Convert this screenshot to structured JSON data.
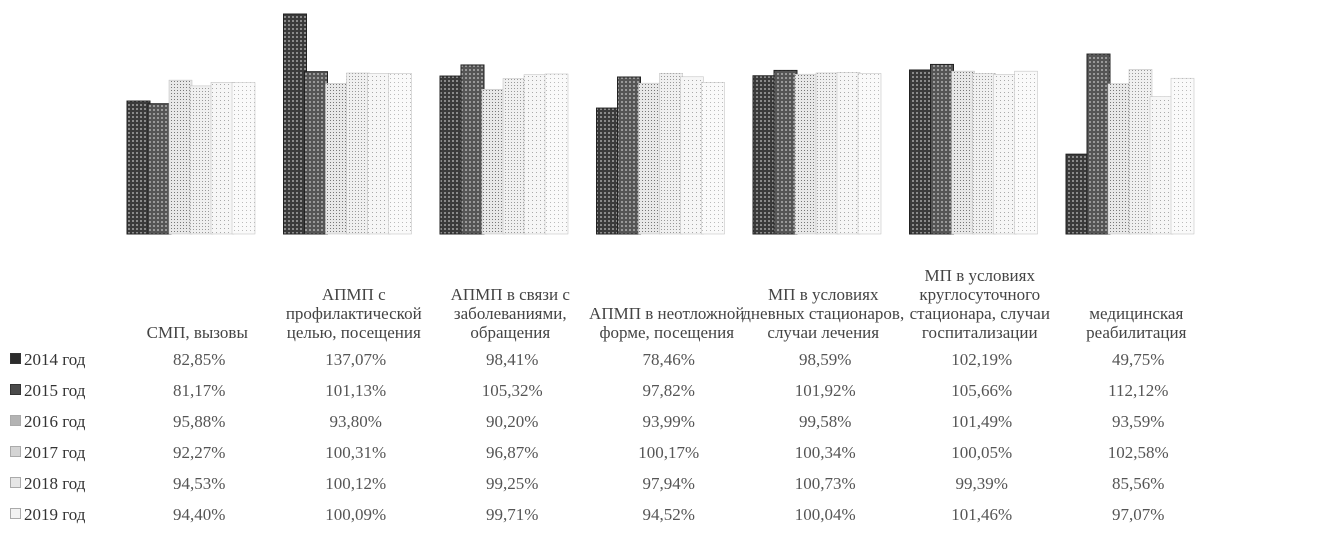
{
  "chart_data": {
    "type": "bar",
    "categories": [
      "СМП, вызовы",
      "АПМП с профилактической целью, посещения",
      "АПМП в связи с заболеваниями, обращения",
      "АПМП в неотложной форме, посещения",
      "МП в условиях дневных стационаров, случаи лечения",
      "МП в условиях круглосуточного стационара, случаи госпитализации",
      "медицинская реабилитация"
    ],
    "series": [
      {
        "name": "2014 год",
        "color": "#2b2b2b",
        "values": [
          82.85,
          137.07,
          98.41,
          78.46,
          98.59,
          102.19,
          49.75
        ],
        "labels": [
          "82,85%",
          "137,07%",
          "98,41%",
          "78,46%",
          "98,59%",
          "102,19%",
          "49,75%"
        ]
      },
      {
        "name": "2015 год",
        "color": "#4a4a4a",
        "values": [
          81.17,
          101.13,
          105.32,
          97.82,
          101.92,
          105.66,
          112.12
        ],
        "labels": [
          "81,17%",
          "101,13%",
          "105,32%",
          "97,82%",
          "101,92%",
          "105,66%",
          "112,12%"
        ]
      },
      {
        "name": "2016 год",
        "color": "#b3b3b3",
        "values": [
          95.88,
          93.8,
          90.2,
          93.99,
          99.58,
          101.49,
          93.59
        ],
        "labels": [
          "95,88%",
          "93,80%",
          "90,20%",
          "93,99%",
          "99,58%",
          "101,49%",
          "93,59%"
        ]
      },
      {
        "name": "2017 год",
        "color": "#d4d4d4",
        "values": [
          92.27,
          100.31,
          96.87,
          100.17,
          100.34,
          100.05,
          102.58
        ],
        "labels": [
          "92,27%",
          "100,31%",
          "96,87%",
          "100,17%",
          "100,34%",
          "100,05%",
          "102,58%"
        ]
      },
      {
        "name": "2018 год",
        "color": "#e6e6e6",
        "values": [
          94.53,
          100.12,
          99.25,
          97.94,
          100.73,
          99.39,
          85.56
        ],
        "labels": [
          "94,53%",
          "100,12%",
          "99,25%",
          "97,94%",
          "100,73%",
          "99,39%",
          "85,56%"
        ]
      },
      {
        "name": "2019 год",
        "color": "#f2f2f2",
        "values": [
          94.4,
          100.09,
          99.71,
          94.52,
          100.04,
          101.46,
          97.07
        ],
        "labels": [
          "94,40%",
          "100,09%",
          "99,71%",
          "94,52%",
          "100,04%",
          "101,46%",
          "97,07%"
        ]
      }
    ],
    "ylim": [
      0,
      140
    ],
    "legend_position": "left of data table",
    "grid": false
  }
}
